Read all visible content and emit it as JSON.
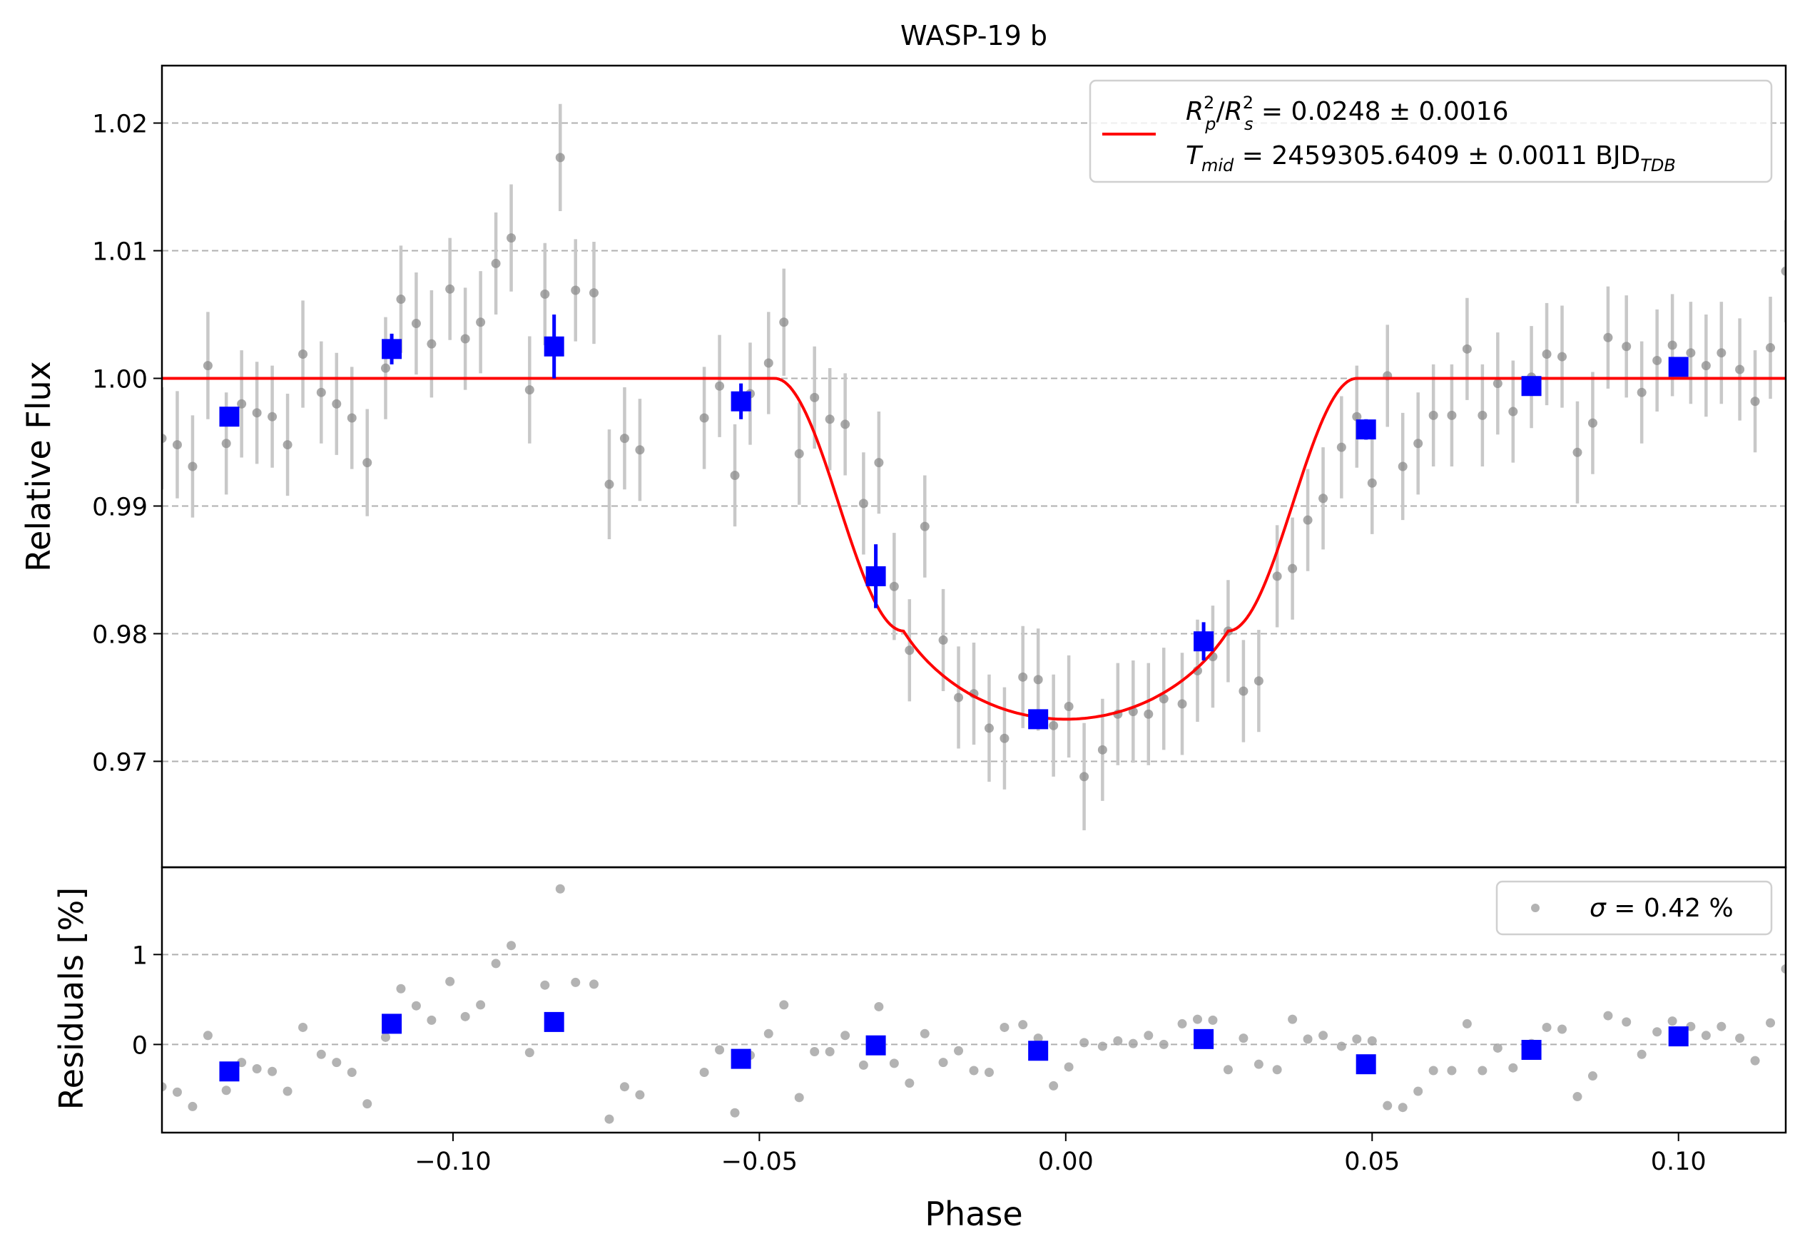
{
  "chart_data": [
    {
      "type": "scatter",
      "title": "WASP-19 b",
      "xlabel": "",
      "ylabel": "Relative Flux",
      "xlim": [
        -0.1475,
        0.1175
      ],
      "ylim": [
        0.9617,
        1.0245
      ],
      "yticks": [
        0.97,
        0.98,
        0.99,
        1.0,
        1.01,
        1.02
      ],
      "ytick_labels": [
        "0.97",
        "0.98",
        "0.99",
        "1.00",
        "1.01",
        "1.02"
      ],
      "grid": "y-dashed",
      "legend_position": "top-right",
      "legend": {
        "line1": {
          "sym1": "R",
          "sup1": "2",
          "sub1": "p",
          "slash": "/",
          "sym2": "R",
          "sup2": "2",
          "sub2": "s",
          "value": " = 0.0248 ± 0.0016"
        },
        "line2": {
          "sym": "T",
          "sub": "mid",
          "value": " = 2459305.6409 ± 0.0011 BJD",
          "unit_sub": "TDB"
        }
      },
      "model": {
        "color": "#ff0000",
        "t_ingress_start": 0.0475,
        "t_full": 0.0265,
        "depth": 0.0267,
        "limb": 0.55
      },
      "raw_series": {
        "color": "#8c8c8c",
        "x": [
          -0.1475,
          -0.145,
          -0.1425,
          -0.14,
          -0.137,
          -0.1345,
          -0.132,
          -0.1295,
          -0.127,
          -0.1245,
          -0.1215,
          -0.119,
          -0.1165,
          -0.114,
          -0.111,
          -0.1085,
          -0.106,
          -0.1035,
          -0.1005,
          -0.098,
          -0.0955,
          -0.093,
          -0.0905,
          -0.0875,
          -0.085,
          -0.0825,
          -0.08,
          -0.077,
          -0.0745,
          -0.072,
          -0.0695,
          -0.059,
          -0.0565,
          -0.054,
          -0.0515,
          -0.0485,
          -0.046,
          -0.0435,
          -0.041,
          -0.0385,
          -0.036,
          -0.033,
          -0.0305,
          -0.028,
          -0.0255,
          -0.023,
          -0.02,
          -0.0175,
          -0.015,
          -0.0125,
          -0.01,
          -0.007,
          -0.0045,
          -0.002,
          0.0005,
          0.003,
          0.006,
          0.0085,
          0.011,
          0.0135,
          0.016,
          0.019,
          0.0215,
          0.024,
          0.0265,
          0.029,
          0.0315,
          0.0345,
          0.037,
          0.0395,
          0.042,
          0.045,
          0.0475,
          0.05,
          0.0525,
          0.055,
          0.0575,
          0.06,
          0.063,
          0.0655,
          0.068,
          0.0705,
          0.073,
          0.076,
          0.0785,
          0.081,
          0.0835,
          0.086,
          0.0885,
          0.0915,
          0.094,
          0.0965,
          0.099,
          0.102,
          0.1045,
          0.107,
          0.11,
          0.1125,
          0.115,
          0.1175
        ],
        "y": [
          0.9953,
          0.9948,
          0.9931,
          1.001,
          0.9949,
          0.998,
          0.9973,
          0.997,
          0.9948,
          1.0019,
          0.9989,
          0.998,
          0.9969,
          0.9934,
          1.0008,
          1.0062,
          1.0043,
          1.0027,
          1.007,
          1.0031,
          1.0044,
          1.009,
          1.011,
          0.9991,
          1.0066,
          1.0173,
          1.0069,
          1.0067,
          0.9917,
          0.9953,
          0.9944,
          0.9969,
          0.9994,
          0.9924,
          0.9988,
          1.0012,
          1.0044,
          0.9941,
          0.9985,
          0.9968,
          0.9964,
          0.9902,
          0.9934,
          0.9837,
          0.9787,
          0.9884,
          0.9795,
          0.975,
          0.9753,
          0.9726,
          0.9718,
          0.9766,
          0.9764,
          0.9728,
          0.9743,
          0.9688,
          0.9709,
          0.9737,
          0.9739,
          0.9737,
          0.9749,
          0.9745,
          0.9771,
          0.9782,
          0.9802,
          0.9755,
          0.9763,
          0.9845,
          0.9851,
          0.9889,
          0.9906,
          0.9946,
          0.997,
          0.9918,
          1.0002,
          0.9931,
          0.9949,
          0.9971,
          0.9971,
          1.0023,
          0.9971,
          0.9996,
          0.9974,
          1.0001,
          1.0019,
          1.0017,
          0.9942,
          0.9965,
          1.0032,
          1.0025,
          0.9989,
          1.0014,
          1.0026,
          1.002,
          1.001,
          1.002,
          1.0007,
          0.9982,
          1.0024,
          1.0084
        ],
        "err": [
          0.004,
          0.0042,
          0.004,
          0.0042,
          0.004,
          0.0042,
          0.004,
          0.004,
          0.004,
          0.0042,
          0.004,
          0.004,
          0.004,
          0.0042,
          0.004,
          0.0042,
          0.004,
          0.0042,
          0.004,
          0.004,
          0.004,
          0.004,
          0.0042,
          0.0042,
          0.004,
          0.0042,
          0.004,
          0.004,
          0.0043,
          0.004,
          0.004,
          0.004,
          0.004,
          0.004,
          0.004,
          0.004,
          0.0042,
          0.004,
          0.004,
          0.004,
          0.004,
          0.004,
          0.004,
          0.0042,
          0.004,
          0.004,
          0.004,
          0.004,
          0.004,
          0.0042,
          0.004,
          0.004,
          0.004,
          0.004,
          0.004,
          0.0042,
          0.004,
          0.004,
          0.004,
          0.004,
          0.004,
          0.004,
          0.004,
          0.004,
          0.004,
          0.004,
          0.004,
          0.004,
          0.004,
          0.004,
          0.004,
          0.004,
          0.004,
          0.004,
          0.004,
          0.0042,
          0.004,
          0.004,
          0.004,
          0.004,
          0.004,
          0.004,
          0.004,
          0.004,
          0.004,
          0.004,
          0.004,
          0.004,
          0.004,
          0.004,
          0.004,
          0.004,
          0.004,
          0.004,
          0.004,
          0.004,
          0.004,
          0.004,
          0.004,
          0.004
        ]
      },
      "binned_series": {
        "color": "#0000ff",
        "x": [
          -0.1365,
          -0.11,
          -0.0835,
          -0.053,
          -0.031,
          -0.0045,
          0.0225,
          0.049,
          0.076,
          0.1
        ],
        "y": [
          0.997,
          1.0023,
          1.0025,
          0.9982,
          0.9845,
          0.9733,
          0.9794,
          0.996,
          0.9994,
          1.0009
        ],
        "err": [
          0.0007,
          0.0012,
          0.0025,
          0.0014,
          0.0025,
          0.0006,
          0.0015,
          0.0008,
          0.0006,
          0.0005
        ]
      }
    },
    {
      "type": "scatter",
      "xlabel": "Phase",
      "ylabel": "Residuals [%]",
      "xlim": [
        -0.1475,
        0.1175
      ],
      "ylim": [
        -0.98,
        1.97
      ],
      "xticks": [
        -0.1,
        -0.05,
        0.0,
        0.05,
        0.1
      ],
      "xtick_labels": [
        "−0.10",
        "−0.05",
        "0.00",
        "0.05",
        "0.10"
      ],
      "yticks": [
        0,
        1
      ],
      "ytick_labels": [
        "0",
        "1"
      ],
      "grid": "y-dashed",
      "legend_position": "top-right",
      "legend": {
        "sym": "σ",
        "text": " = 0.42 %"
      },
      "raw_series": {
        "color": "#8c8c8c",
        "y": [
          -0.47,
          -0.53,
          -0.69,
          0.1,
          -0.51,
          -0.2,
          -0.27,
          -0.3,
          -0.52,
          0.19,
          -0.11,
          -0.2,
          -0.31,
          -0.66,
          0.08,
          0.62,
          0.43,
          0.27,
          0.7,
          0.31,
          0.44,
          0.9,
          1.1,
          -0.09,
          0.66,
          1.73,
          0.69,
          0.67,
          -0.83,
          -0.47,
          -0.56,
          -0.31,
          -0.06,
          -0.76,
          -0.12,
          0.12,
          0.44,
          -0.59,
          -0.08,
          -0.08,
          0.1,
          -0.23,
          0.42,
          -0.21,
          -0.43,
          0.12,
          -0.2,
          -0.07,
          -0.29,
          -0.31,
          0.19,
          0.22,
          0.07,
          -0.46,
          -0.25,
          0.02,
          -0.02,
          0.04,
          0.01,
          0.1,
          0.0,
          0.23,
          0.28,
          0.27,
          -0.28,
          0.07,
          -0.22,
          -0.28,
          0.28,
          0.06,
          0.1,
          -0.02,
          0.06,
          0.04,
          -0.68,
          -0.7,
          -0.52,
          -0.29,
          -0.29,
          0.23,
          -0.29,
          -0.04,
          -0.26,
          0.01,
          0.19,
          0.17,
          -0.58,
          -0.35,
          0.32,
          0.25,
          -0.11,
          0.14,
          0.26,
          0.2,
          0.1,
          0.2,
          0.07,
          -0.18,
          0.24,
          0.84
        ]
      },
      "binned_series": {
        "color": "#0000ff",
        "y": [
          -0.3,
          0.23,
          0.25,
          -0.16,
          -0.01,
          -0.07,
          0.06,
          -0.22,
          -0.06,
          0.09
        ]
      }
    }
  ]
}
